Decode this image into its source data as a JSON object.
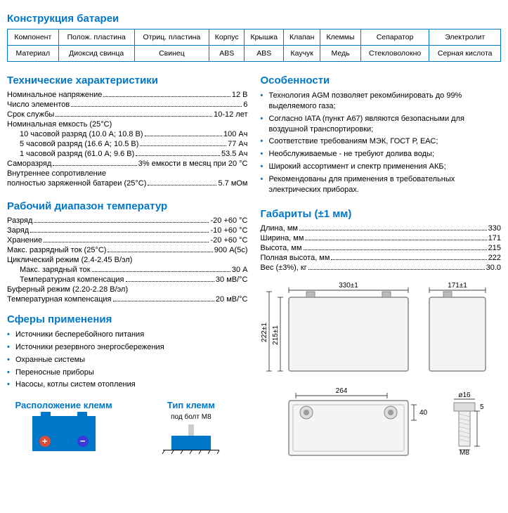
{
  "colors": {
    "accent": "#0077c8",
    "text": "#000",
    "bg": "#fff"
  },
  "construction": {
    "title": "Конструкция батареи",
    "headers": [
      "Компонент",
      "Полож. пластина",
      "Отриц. пластина",
      "Корпус",
      "Крышка",
      "Клапан",
      "Клеммы",
      "Сепаратор",
      "Электролит"
    ],
    "row_label": "Материал",
    "values": [
      "Диоксид свинца",
      "Свинец",
      "ABS",
      "ABS",
      "Каучук",
      "Медь",
      "Стекловолокно",
      "Серная кислота"
    ]
  },
  "tech": {
    "title": "Технические характеристики",
    "rows": [
      {
        "l": "Номинальное напряжение",
        "v": "12 В"
      },
      {
        "l": "Число элементов",
        "v": "6"
      },
      {
        "l": "Срок службы",
        "v": "10-12 лет"
      },
      {
        "l": "Номинальная емкость (25°C)",
        "v": ""
      },
      {
        "l": "10 часовой разряд (10.0 А; 10.8 В)",
        "v": "100 Ач",
        "indent": true
      },
      {
        "l": "5 часовой разряд (16.6 А; 10.5 В)",
        "v": "77 Ач",
        "indent": true
      },
      {
        "l": "1 часовой разряд (61.0 А; 9.6 В)",
        "v": "53.5 Ач",
        "indent": true
      },
      {
        "l": "Саморазряд",
        "v": "3% емкости в месяц при 20 °C"
      },
      {
        "l": "Внутреннее сопротивление",
        "v": ""
      },
      {
        "l": "полностью заряженной батареи (25°C)",
        "v": "5.7 мОм"
      }
    ]
  },
  "features": {
    "title": "Особенности",
    "items": [
      "Технология AGM позволяет рекомбинировать до 99% выделяемого газа;",
      "Согласно IATA (пункт А67) являются безопасными для воздушной транспортировки;",
      "Соответствие требованиям МЭК, ГОСТ Р, ЕАС;",
      "Необслуживаемые - не требуют долива воды;",
      "Широкий ассортимент и спектр применения АКБ;",
      "Рекомендованы для применения в требовательных электрических приборах."
    ]
  },
  "temp": {
    "title": "Рабочий диапазон температур",
    "rows": [
      {
        "l": "Разряд",
        "v": "-20 +60 °C"
      },
      {
        "l": "Заряд",
        "v": "-10 +60 °C"
      },
      {
        "l": "Хранение",
        "v": "-20 +60 °C"
      },
      {
        "l": "Макс. разрядный ток (25°C)",
        "v": "900 А(5с)"
      },
      {
        "l": "Циклический режим (2.4-2.45 В/эл)",
        "v": ""
      },
      {
        "l": "Макс. зарядный ток",
        "v": "30 А",
        "indent": true
      },
      {
        "l": "Температурная компенсация",
        "v": "30 мВ/°C",
        "indent": true
      },
      {
        "l": "Буферный режим (2.20-2.28 В/эл)",
        "v": ""
      },
      {
        "l": "Температурная компенсация",
        "v": "20 мВ/°C"
      }
    ]
  },
  "dims": {
    "title": "Габариты (±1 мм)",
    "rows": [
      {
        "l": "Длина, мм",
        "v": "330"
      },
      {
        "l": "Ширина, мм",
        "v": "171"
      },
      {
        "l": "Высота, мм",
        "v": "215"
      },
      {
        "l": "Полная высота, мм",
        "v": "222"
      },
      {
        "l": "Вес (±3%), кг",
        "v": "30.0"
      }
    ],
    "drawing": {
      "len": "330±1",
      "width": "171±1",
      "height": "215±1",
      "full_h": "222±1",
      "top_len": "264",
      "top_h": "40",
      "bolt_d": "ø16",
      "bolt_h": "5",
      "bolt": "M8"
    }
  },
  "apps": {
    "title": "Сферы применения",
    "items": [
      "Источники бесперебойного питания",
      "Источники резервного энергосбережения",
      "Охранные системы",
      "Переносные приборы",
      "Насосы, котлы систем отопления"
    ]
  },
  "terminals": {
    "layout_title": "Расположение клемм",
    "type_title": "Тип клемм",
    "type_sub": "под болт М8",
    "phi": "ø"
  }
}
